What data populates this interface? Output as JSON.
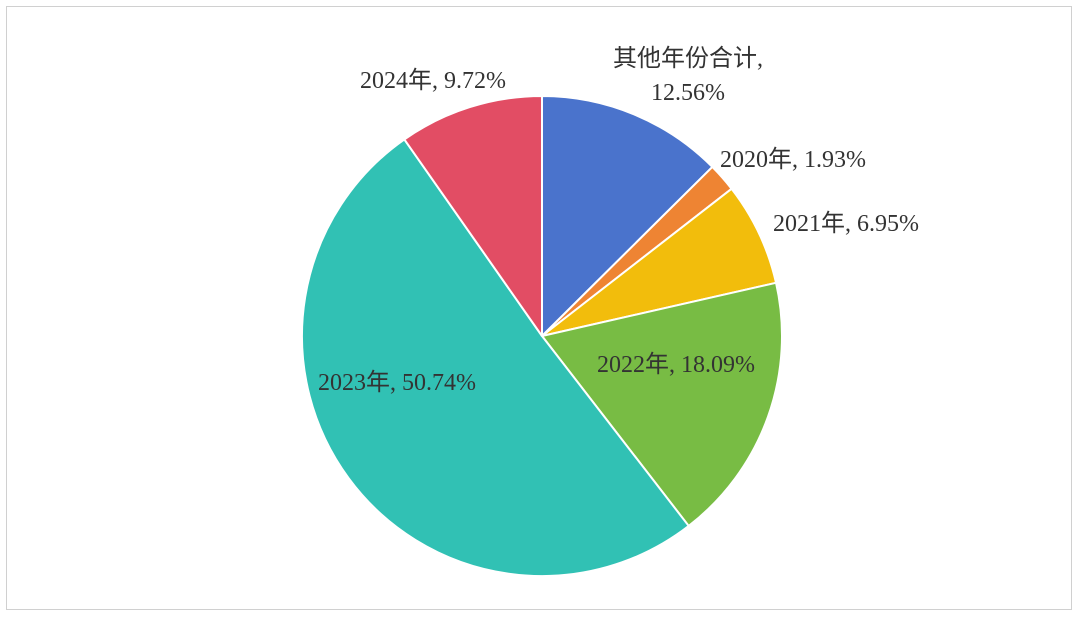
{
  "chart_data": {
    "type": "pie",
    "title": "",
    "start_angle_deg": 0,
    "direction": "clockwise",
    "slices": [
      {
        "label": "其他年份合计",
        "value": 12.56,
        "display": "其他年份合计,|12.56%",
        "color": "#4a73cc"
      },
      {
        "label": "2020年",
        "value": 1.93,
        "display": "2020年, 1.93%",
        "color": "#ee8433"
      },
      {
        "label": "2021年",
        "value": 6.95,
        "display": "2021年, 6.95%",
        "color": "#f2bd0c"
      },
      {
        "label": "2022年",
        "value": 18.09,
        "display": "2022年, 18.09%",
        "color": "#78bc44"
      },
      {
        "label": "2023年",
        "value": 50.74,
        "display": "2023年, 50.74%",
        "color": "#31c1b4"
      },
      {
        "label": "2024年",
        "value": 9.72,
        "display": "2024年, 9.72%",
        "color": "#e24d64"
      }
    ]
  }
}
